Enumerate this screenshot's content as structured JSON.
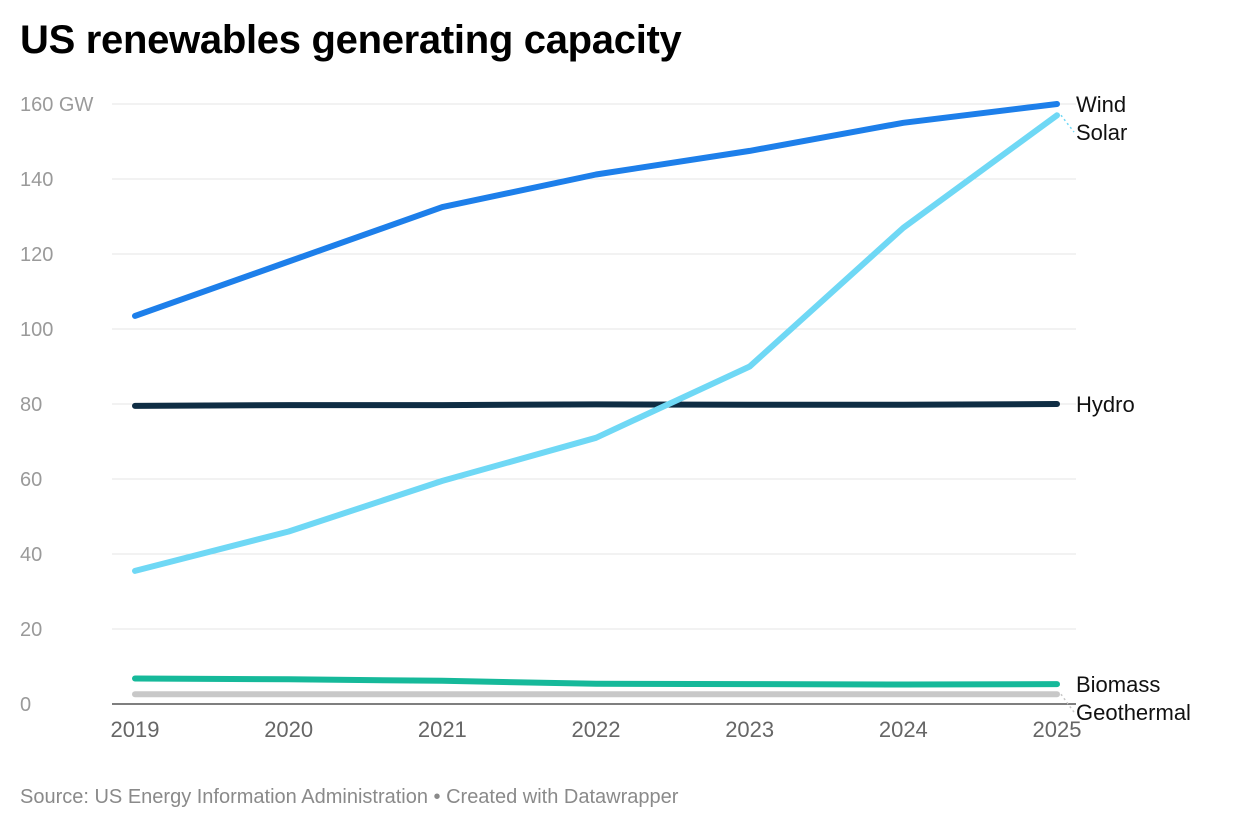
{
  "chart_data": {
    "type": "line",
    "title": "US renewables generating capacity",
    "source": "Source: US Energy Information Administration • Created with Datawrapper",
    "x": [
      2019,
      2020,
      2021,
      2022,
      2023,
      2024,
      2025
    ],
    "xlabel": "",
    "ylabel": "",
    "ylim": [
      0,
      160
    ],
    "yticks": [
      {
        "value": 0,
        "label": "0"
      },
      {
        "value": 20,
        "label": "20"
      },
      {
        "value": 40,
        "label": "40"
      },
      {
        "value": 60,
        "label": "60"
      },
      {
        "value": 80,
        "label": "80"
      },
      {
        "value": 100,
        "label": "100"
      },
      {
        "value": 120,
        "label": "120"
      },
      {
        "value": 140,
        "label": "140"
      },
      {
        "value": 160,
        "label": "160 GW"
      }
    ],
    "xtick_labels": [
      "2019",
      "2020",
      "2021",
      "2022",
      "2023",
      "2024",
      "2025"
    ],
    "grid": true,
    "legend": "direct labels at line ends (right)",
    "series": [
      {
        "name": "Wind",
        "color": "#1d7fea",
        "values": [
          103.5,
          118,
          132.5,
          141.2,
          147.5,
          155,
          160
        ]
      },
      {
        "name": "Solar",
        "color": "#6fd8f5",
        "values": [
          35.5,
          46,
          59.5,
          71,
          90,
          127,
          157
        ]
      },
      {
        "name": "Hydro",
        "color": "#0f2d44",
        "values": [
          79.5,
          79.7,
          79.7,
          79.9,
          79.8,
          79.8,
          80
        ]
      },
      {
        "name": "Biomass",
        "color": "#16b99a",
        "values": [
          6.8,
          6.6,
          6.2,
          5.4,
          5.3,
          5.2,
          5.3
        ]
      },
      {
        "name": "Geothermal",
        "color": "#c8c8c8",
        "values": [
          2.6,
          2.6,
          2.6,
          2.6,
          2.6,
          2.6,
          2.6
        ]
      }
    ]
  }
}
